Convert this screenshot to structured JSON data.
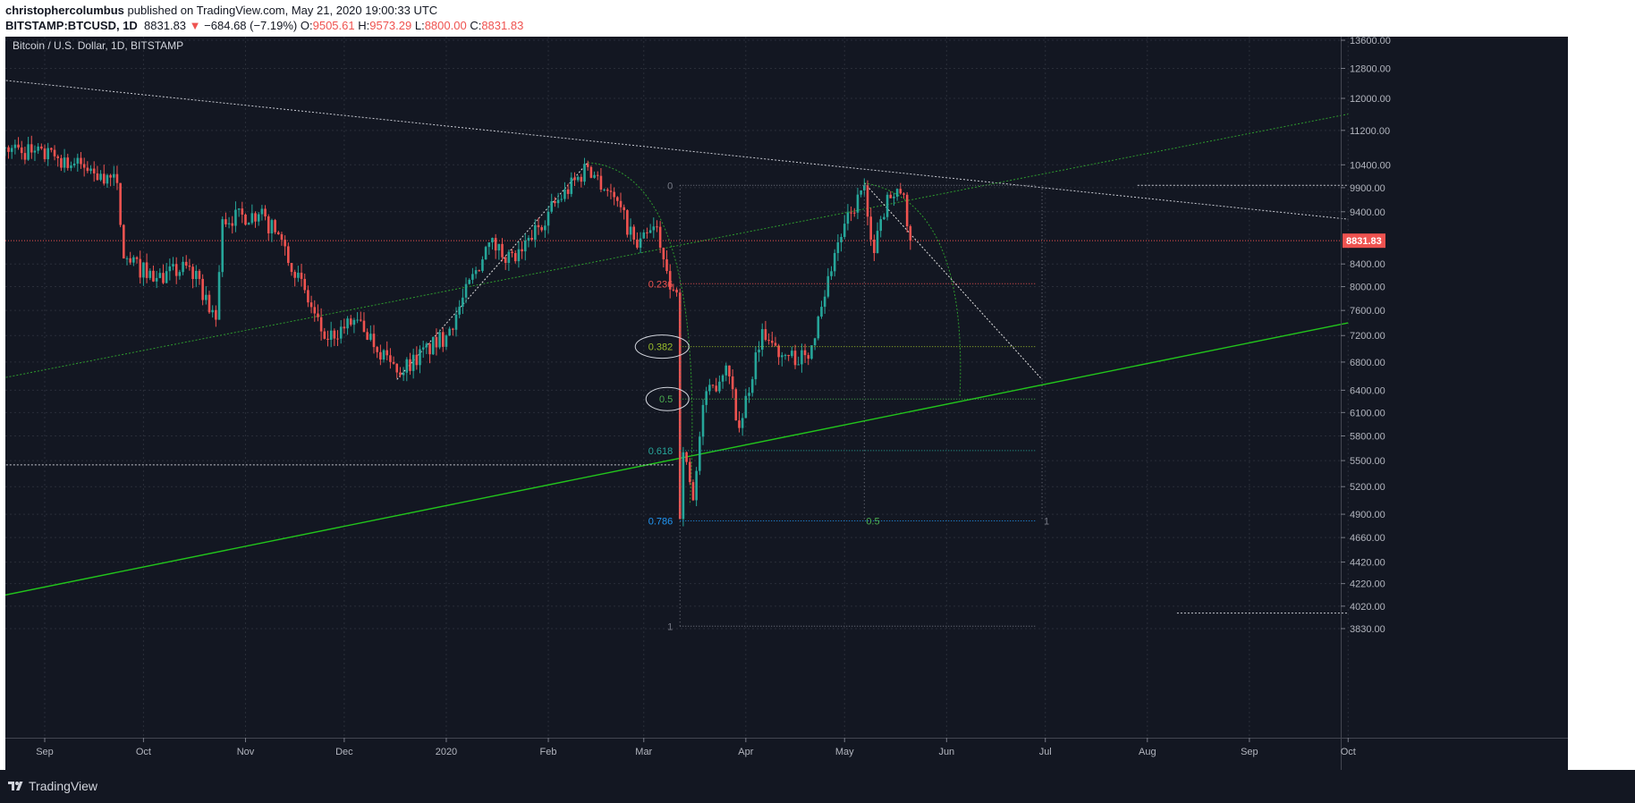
{
  "header": {
    "author": "christophercolumbus",
    "published_text": " published on TradingView.com, May 21, 2020 19:00:33 UTC",
    "symbol": "BITSTAMP:BTCUSD, 1D",
    "last": "8831.83",
    "change_arrow": "▼",
    "change": "−684.68 (−7.19%)",
    "o_label": "O:",
    "o_value": "9505.61",
    "h_label": "H:",
    "h_value": "9573.29",
    "l_label": "L:",
    "l_value": "8800.00",
    "c_label": "C:",
    "c_value": "8831.83"
  },
  "legend_title": "Bitcoin / U.S. Dollar, 1D, BITSTAMP",
  "footer": {
    "brand": "TradingView",
    "logo_icon": "tradingview-logo-icon"
  },
  "colors": {
    "background": "#131722",
    "up": "#26a69a",
    "down": "#ef5350",
    "grid": "#2a2e39",
    "text": "#b2b5be",
    "trend_green": "#22c41c",
    "price_line": "#ef5350"
  },
  "chart_data": {
    "type": "candlestick",
    "title": "Bitcoin / U.S. Dollar, 1D, BITSTAMP",
    "x_ticks": [
      "Sep",
      "Oct",
      "Nov",
      "Dec",
      "2020",
      "Feb",
      "Mar",
      "Apr",
      "May",
      "Jun",
      "Jul",
      "Aug",
      "Sep",
      "Oct"
    ],
    "y_ticks": [
      "13600.00",
      "12800.00",
      "12000.00",
      "11200.00",
      "10400.00",
      "9900.00",
      "9400.00",
      "8400.00",
      "8000.00",
      "7600.00",
      "7200.00",
      "6800.00",
      "6400.00",
      "6100.00",
      "5800.00",
      "5500.00",
      "5200.00",
      "4900.00",
      "4660.00",
      "4420.00",
      "4220.00",
      "4020.00",
      "3830.00"
    ],
    "y_scale": "log",
    "last_price": "8831.83",
    "price_anchors": [
      {
        "date": "2019-08-20",
        "close": 10800
      },
      {
        "date": "2019-09-05",
        "close": 10550
      },
      {
        "date": "2019-09-18",
        "close": 10200
      },
      {
        "date": "2019-09-23",
        "close": 10000
      },
      {
        "date": "2019-09-25",
        "close": 8500
      },
      {
        "date": "2019-10-05",
        "close": 8150
      },
      {
        "date": "2019-10-15",
        "close": 8350
      },
      {
        "date": "2019-10-23",
        "close": 7450
      },
      {
        "date": "2019-10-25",
        "close": 9250
      },
      {
        "date": "2019-11-05",
        "close": 9350
      },
      {
        "date": "2019-11-12",
        "close": 8850
      },
      {
        "date": "2019-11-25",
        "close": 7150
      },
      {
        "date": "2019-12-05",
        "close": 7450
      },
      {
        "date": "2019-12-17",
        "close": 6650
      },
      {
        "date": "2020-01-01",
        "close": 7200
      },
      {
        "date": "2020-01-14",
        "close": 8800
      },
      {
        "date": "2020-01-22",
        "close": 8450
      },
      {
        "date": "2020-02-01",
        "close": 9400
      },
      {
        "date": "2020-02-13",
        "close": 10350
      },
      {
        "date": "2020-02-21",
        "close": 9700
      },
      {
        "date": "2020-02-28",
        "close": 8700
      },
      {
        "date": "2020-03-05",
        "close": 9100
      },
      {
        "date": "2020-03-09",
        "close": 7950
      },
      {
        "date": "2020-03-11",
        "close": 7900
      },
      {
        "date": "2020-03-12",
        "close": 4850
      },
      {
        "date": "2020-03-13",
        "close": 5600
      },
      {
        "date": "2020-03-16",
        "close": 5050
      },
      {
        "date": "2020-03-19",
        "close": 6200
      },
      {
        "date": "2020-03-26",
        "close": 6750
      },
      {
        "date": "2020-03-30",
        "close": 5900
      },
      {
        "date": "2020-04-06",
        "close": 7300
      },
      {
        "date": "2020-04-12",
        "close": 6900
      },
      {
        "date": "2020-04-20",
        "close": 6850
      },
      {
        "date": "2020-04-23",
        "close": 7500
      },
      {
        "date": "2020-04-29",
        "close": 8800
      },
      {
        "date": "2020-05-07",
        "close": 9950
      },
      {
        "date": "2020-05-10",
        "close": 8600
      },
      {
        "date": "2020-05-14",
        "close": 9750
      },
      {
        "date": "2020-05-19",
        "close": 9750
      },
      {
        "date": "2020-05-21",
        "close": 8831.83
      }
    ],
    "drawings": {
      "fib_levels": [
        {
          "label": "0",
          "price": 9950
        },
        {
          "label": "0.236",
          "price": 8050
        },
        {
          "label": "0.382",
          "price": 7030
        },
        {
          "label": "0.5",
          "price": 6280
        },
        {
          "label": "0.618",
          "price": 5620
        },
        {
          "label": "0.786",
          "price": 4830
        },
        {
          "label": "1",
          "price": 3850
        }
      ],
      "fib_time_labels": [
        "0.5",
        "1"
      ],
      "lines": [
        {
          "kind": "descending-resistance",
          "from": [
            "2019-08-17",
            12500
          ],
          "to": [
            "2020-10-01",
            9250
          ]
        },
        {
          "kind": "ascending-support",
          "from": [
            "2019-08-17",
            6550
          ],
          "to": [
            "2020-10-01",
            11600
          ]
        },
        {
          "kind": "rising-trend-solid",
          "from": [
            "2019-08-17",
            4100
          ],
          "to": [
            "2020-10-01",
            7400
          ]
        },
        {
          "kind": "horizontal",
          "from": [
            "2019-08-17",
            5450
          ],
          "to": [
            "2020-03-10",
            5450
          ]
        },
        {
          "kind": "horizontal",
          "from": [
            "2020-07-29",
            9950
          ],
          "to": [
            "2020-10-01",
            9950
          ]
        },
        {
          "kind": "horizontal",
          "from": [
            "2020-08-10",
            3960
          ],
          "to": [
            "2020-10-01",
            3960
          ]
        }
      ]
    }
  }
}
